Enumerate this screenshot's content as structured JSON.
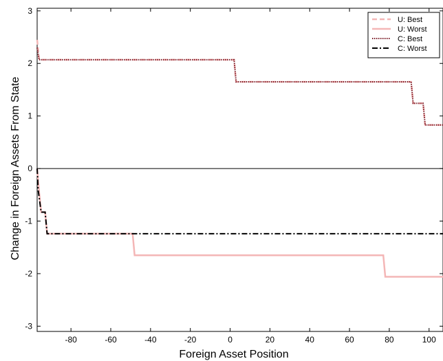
{
  "chart_data": {
    "type": "line",
    "title": "",
    "xlabel": "Foreign Asset Position",
    "ylabel": "Change in Foreign Assets From State",
    "xlim": [
      -97,
      107
    ],
    "ylim": [
      -3.1,
      3.05
    ],
    "xticks": [
      -80,
      -60,
      -40,
      -20,
      0,
      20,
      40,
      60,
      80,
      100
    ],
    "xtick_labels": [
      "-80",
      "-60",
      "-40",
      "-20",
      "0",
      "20",
      "40",
      "60",
      "80",
      "100"
    ],
    "yticks": [
      -3,
      -2,
      -1,
      0,
      1,
      2,
      3
    ],
    "ytick_labels": [
      "-3",
      "-2",
      "-1",
      "0",
      "1",
      "2",
      "3"
    ],
    "grid": false,
    "legend_position": "top-right",
    "reference_line_y": 0,
    "series": [
      {
        "name": "U: Best",
        "color": "#f4b6b6",
        "style": "dashed",
        "points": [
          [
            -97,
            2.45
          ],
          [
            -96,
            2.07
          ],
          [
            2,
            2.07
          ],
          [
            3,
            1.65
          ],
          [
            91,
            1.65
          ],
          [
            92,
            1.24
          ],
          [
            97,
            1.24
          ],
          [
            98,
            0.83
          ],
          [
            107,
            0.83
          ]
        ]
      },
      {
        "name": "U: Worst",
        "color": "#f4b6b6",
        "style": "solid",
        "points": [
          [
            -97,
            0
          ],
          [
            -96,
            -0.45
          ],
          [
            -95,
            -0.83
          ],
          [
            -93,
            -0.83
          ],
          [
            -92,
            -1.24
          ],
          [
            -49,
            -1.24
          ],
          [
            -48,
            -1.65
          ],
          [
            77,
            -1.65
          ],
          [
            78,
            -2.06
          ],
          [
            107,
            -2.06
          ]
        ]
      },
      {
        "name": "C: Best",
        "color": "#7a1a24",
        "style": "dotted",
        "points": [
          [
            -97,
            2.3
          ],
          [
            -96,
            2.07
          ],
          [
            2,
            2.07
          ],
          [
            3,
            1.65
          ],
          [
            91,
            1.65
          ],
          [
            92,
            1.24
          ],
          [
            97,
            1.24
          ],
          [
            98,
            0.83
          ],
          [
            107,
            0.83
          ]
        ]
      },
      {
        "name": "C: Worst",
        "color": "#000000",
        "style": "dashdot",
        "points": [
          [
            -97,
            0
          ],
          [
            -96.5,
            -0.4
          ],
          [
            -95,
            -0.83
          ],
          [
            -93,
            -0.83
          ],
          [
            -92,
            -1.24
          ],
          [
            107,
            -1.24
          ]
        ]
      }
    ]
  }
}
